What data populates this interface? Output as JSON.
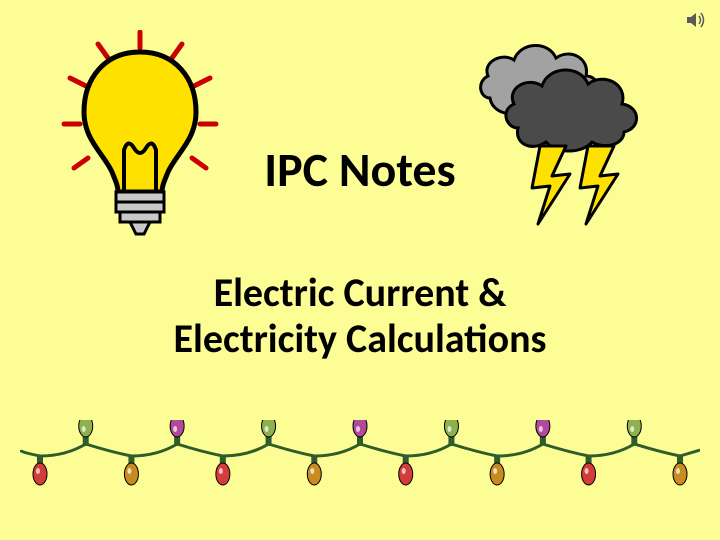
{
  "title": {
    "text": "IPC Notes",
    "fontsize": 48,
    "color": "#000000"
  },
  "subtitle": {
    "line1": "Electric Current &",
    "line2": "Electricity Calculations",
    "fontsize": 40,
    "color": "#000000"
  },
  "background_color": "#fdfd96",
  "bulb": {
    "glass_fill": "#ffe100",
    "glass_stroke": "#000000",
    "filament": "#000000",
    "base_fill": "#c9c9c9",
    "ray_color": "#cc0000"
  },
  "clouds": {
    "back_fill": "#a2a2a2",
    "front_fill": "#4a4a4a",
    "stroke": "#000000",
    "bolt_fill": "#ffe100",
    "bolt_stroke": "#000000"
  },
  "lights": {
    "wire_color": "#2f5d2a",
    "bulb_colors": [
      "#d43b3b",
      "#8db14f",
      "#c88b1f",
      "#b2499a",
      "#d43b3b",
      "#8db14f",
      "#c88b1f",
      "#b2499a",
      "#d43b3b",
      "#8db14f",
      "#c88b1f",
      "#b2499a",
      "#d43b3b",
      "#8db14f",
      "#c88b1f"
    ]
  },
  "speaker_color": "#5a5a5a"
}
